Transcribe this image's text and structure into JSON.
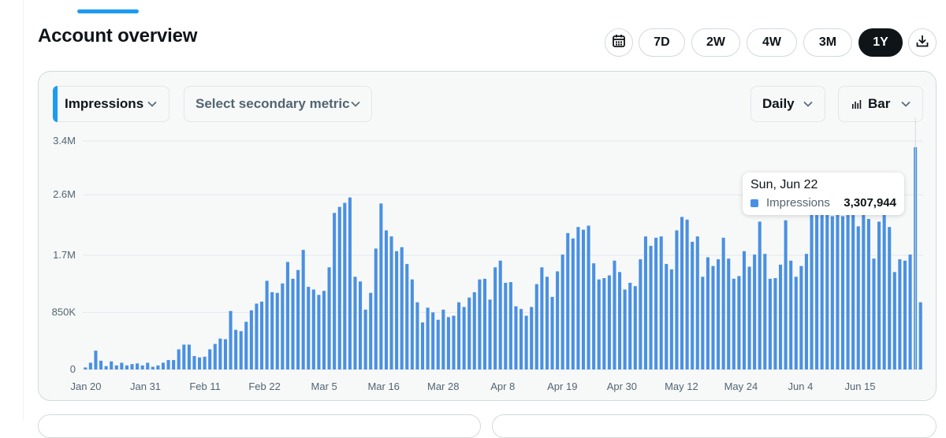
{
  "header": {
    "title": "Account overview",
    "ranges": [
      "7D",
      "2W",
      "4W",
      "3M",
      "1Y"
    ],
    "active_range": "1Y"
  },
  "icons": {
    "calendar": "calendar-icon",
    "download": "download-icon",
    "chevron": "chevron-down-icon",
    "bar": "bar-chart-icon"
  },
  "controls": {
    "primary_metric": "Impressions",
    "secondary_metric": "Select secondary metric",
    "granularity": "Daily",
    "chart_type": "Bar"
  },
  "colors": {
    "accent": "#1d9bf0",
    "bar": "#4a90e2",
    "active_pill": "#0f1419"
  },
  "tooltip": {
    "date": "Sun, Jun 22",
    "series": "Impressions",
    "value": "3,307,944"
  },
  "chart_data": {
    "type": "bar",
    "series": [
      {
        "name": "Impressions"
      }
    ],
    "ylim": [
      0,
      3400000
    ],
    "y_ticks": [
      0,
      850000,
      1700000,
      2600000,
      3400000
    ],
    "y_tick_labels": [
      "0",
      "850K",
      "1.7M",
      "2.6M",
      "3.4M"
    ],
    "x_tick_labels": [
      "Jan 20",
      "Jan 31",
      "Feb 11",
      "Feb 22",
      "Mar 5",
      "Mar 16",
      "Mar 28",
      "Apr 8",
      "Apr 19",
      "Apr 30",
      "May 12",
      "May 24",
      "Jun 4",
      "Jun 15"
    ],
    "grid": true,
    "values": [
      30000,
      100000,
      280000,
      130000,
      50000,
      120000,
      60000,
      100000,
      60000,
      80000,
      90000,
      60000,
      100000,
      40000,
      60000,
      100000,
      140000,
      140000,
      300000,
      370000,
      370000,
      200000,
      180000,
      190000,
      300000,
      380000,
      460000,
      450000,
      870000,
      590000,
      570000,
      710000,
      880000,
      980000,
      1010000,
      1320000,
      1150000,
      1140000,
      1280000,
      1600000,
      1350000,
      1480000,
      1780000,
      1230000,
      1190000,
      1110000,
      1170000,
      1520000,
      2330000,
      2420000,
      2480000,
      2560000,
      1380000,
      1310000,
      890000,
      1140000,
      1800000,
      2470000,
      2070000,
      1980000,
      1760000,
      1820000,
      1570000,
      1340000,
      1000000,
      700000,
      920000,
      850000,
      740000,
      890000,
      780000,
      800000,
      1000000,
      930000,
      1070000,
      1150000,
      1340000,
      1350000,
      1040000,
      1520000,
      1620000,
      1290000,
      1300000,
      940000,
      900000,
      800000,
      930000,
      1270000,
      1520000,
      1380000,
      1080000,
      1460000,
      1710000,
      2030000,
      1950000,
      2120000,
      2080000,
      2140000,
      1580000,
      1340000,
      1360000,
      1400000,
      1620000,
      1450000,
      1190000,
      1290000,
      1240000,
      1640000,
      1980000,
      1840000,
      1960000,
      1980000,
      1570000,
      1490000,
      2070000,
      2270000,
      2230000,
      1900000,
      1980000,
      1380000,
      1670000,
      1540000,
      1640000,
      1960000,
      1650000,
      1350000,
      1390000,
      1760000,
      1530000,
      1710000,
      2200000,
      1720000,
      1350000,
      1360000,
      1560000,
      2220000,
      1620000,
      1380000,
      1540000,
      1720000,
      2340000,
      2560000,
      2350000,
      2390000,
      2280000,
      2300000,
      2280000,
      2330000,
      2380000,
      2130000,
      2460000,
      2240000,
      1650000,
      2200000,
      2520000,
      2120000,
      1450000,
      1640000,
      1620000,
      1710000,
      3307944,
      1000000
    ]
  }
}
